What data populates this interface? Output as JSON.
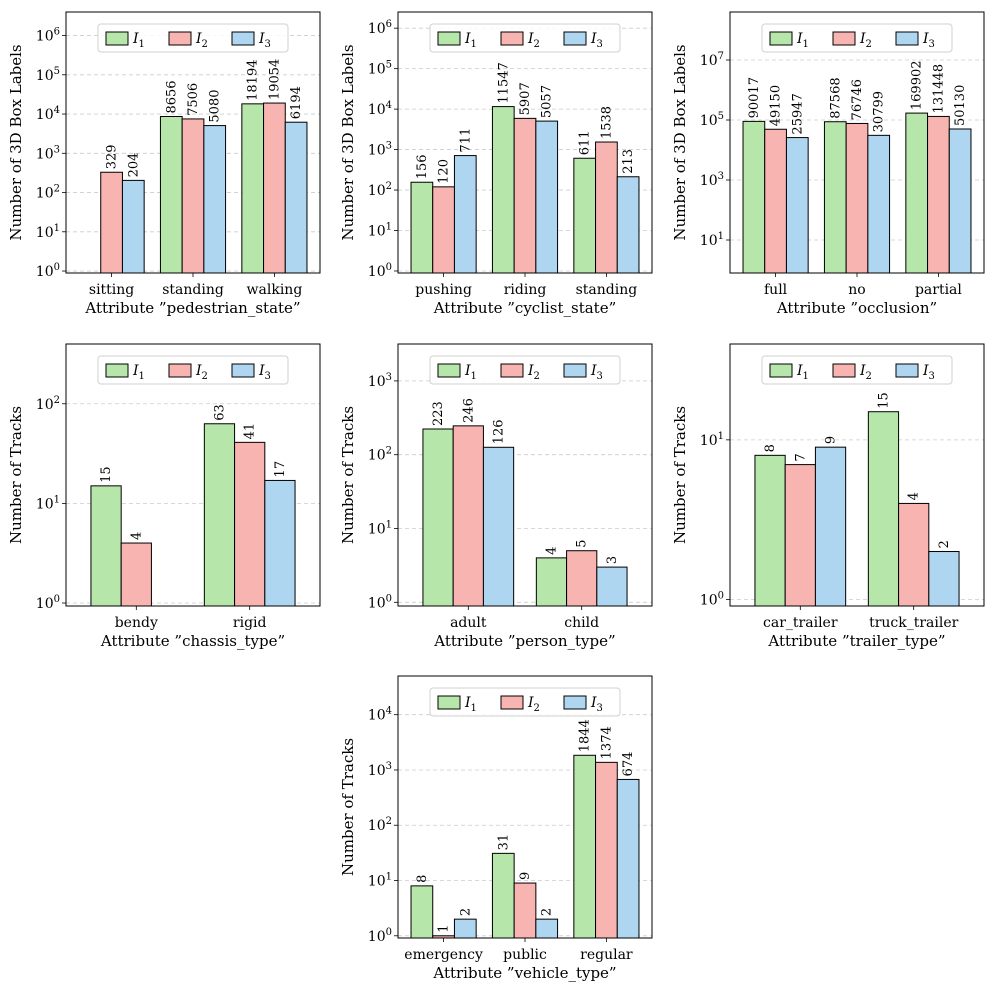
{
  "colors": {
    "s1": "#b6e6a9",
    "s2": "#f7b4b0",
    "s3": "#aed6f1",
    "edge": "#000000",
    "grid": "#cccccc"
  },
  "chart_data": [
    {
      "type": "bar",
      "title": "",
      "xlabel": "Attribute ”pedestrian_state”",
      "ylabel": "Number of 3D Box Labels",
      "categories": [
        "sitting",
        "standing",
        "walking"
      ],
      "series": [
        {
          "name": "I",
          "sub": "1",
          "values": [
            null,
            8656,
            18194
          ]
        },
        {
          "name": "I",
          "sub": "2",
          "values": [
            329,
            7506,
            19054
          ]
        },
        {
          "name": "I",
          "sub": "3",
          "values": [
            204,
            5080,
            6194
          ]
        }
      ],
      "ylim_exp": [
        -0.05,
        6.6
      ],
      "ticks": [
        0,
        1,
        2,
        3,
        4,
        5,
        6
      ],
      "grid": true,
      "legend": "top"
    },
    {
      "type": "bar",
      "title": "",
      "xlabel": "Attribute ”cyclist_state”",
      "ylabel": "Number of 3D Box Labels",
      "categories": [
        "pushing",
        "riding",
        "standing"
      ],
      "series": [
        {
          "name": "I",
          "sub": "1",
          "values": [
            156,
            11547,
            611
          ]
        },
        {
          "name": "I",
          "sub": "2",
          "values": [
            120,
            5907,
            1538
          ]
        },
        {
          "name": "I",
          "sub": "3",
          "values": [
            711,
            5057,
            213
          ]
        }
      ],
      "ylim_exp": [
        -0.05,
        6.4
      ],
      "ticks": [
        0,
        1,
        2,
        3,
        4,
        5,
        6
      ],
      "grid": true,
      "legend": "top"
    },
    {
      "type": "bar",
      "title": "",
      "xlabel": "Attribute ”occlusion”",
      "ylabel": "Number of 3D Box Labels",
      "categories": [
        "full",
        "no",
        "partial"
      ],
      "series": [
        {
          "name": "I",
          "sub": "1",
          "values": [
            90017,
            87568,
            169902
          ]
        },
        {
          "name": "I",
          "sub": "2",
          "values": [
            49150,
            76746,
            131448
          ]
        },
        {
          "name": "I",
          "sub": "3",
          "values": [
            25947,
            30799,
            50130
          ]
        }
      ],
      "ylim_exp": [
        -0.1,
        8.6
      ],
      "ticks": [
        1,
        3,
        5,
        7
      ],
      "grid": true,
      "legend": "top"
    },
    {
      "type": "bar",
      "title": "",
      "xlabel": "Attribute ”chassis_type”",
      "ylabel": "Number of Tracks",
      "categories": [
        "bendy",
        "rigid"
      ],
      "series": [
        {
          "name": "I",
          "sub": "1",
          "values": [
            15,
            63
          ]
        },
        {
          "name": "I",
          "sub": "2",
          "values": [
            4,
            41
          ]
        },
        {
          "name": "I",
          "sub": "3",
          "values": [
            null,
            17
          ]
        }
      ],
      "ylim_exp": [
        -0.03,
        2.6
      ],
      "ticks": [
        0,
        1,
        2
      ],
      "grid": true,
      "legend": "top"
    },
    {
      "type": "bar",
      "title": "",
      "xlabel": "Attribute ”person_type”",
      "ylabel": "Number of Tracks",
      "categories": [
        "adult",
        "child"
      ],
      "series": [
        {
          "name": "I",
          "sub": "1",
          "values": [
            223,
            4
          ]
        },
        {
          "name": "I",
          "sub": "2",
          "values": [
            246,
            5
          ]
        },
        {
          "name": "I",
          "sub": "3",
          "values": [
            126,
            3
          ]
        }
      ],
      "ylim_exp": [
        -0.05,
        3.5
      ],
      "ticks": [
        0,
        1,
        2,
        3
      ],
      "grid": true,
      "legend": "top"
    },
    {
      "type": "bar",
      "title": "",
      "xlabel": "Attribute ”trailer_type”",
      "ylabel": "Number of Tracks",
      "categories": [
        "car_trailer",
        "truck_trailer"
      ],
      "series": [
        {
          "name": "I",
          "sub": "1",
          "values": [
            8,
            15
          ]
        },
        {
          "name": "I",
          "sub": "2",
          "values": [
            7,
            4
          ]
        },
        {
          "name": "I",
          "sub": "3",
          "values": [
            9,
            2
          ]
        }
      ],
      "ylim_exp": [
        -0.04,
        1.6
      ],
      "ticks": [
        0,
        1
      ],
      "grid": true,
      "legend": "top"
    },
    {
      "type": "bar",
      "title": "",
      "xlabel": "Attribute ”vehicle_type”",
      "ylabel": "Number of Tracks",
      "categories": [
        "emergency",
        "public",
        "regular"
      ],
      "series": [
        {
          "name": "I",
          "sub": "1",
          "values": [
            8,
            31,
            1844
          ]
        },
        {
          "name": "I",
          "sub": "2",
          "values": [
            1,
            9,
            1374
          ]
        },
        {
          "name": "I",
          "sub": "3",
          "values": [
            2,
            2,
            674
          ]
        }
      ],
      "ylim_exp": [
        -0.04,
        4.7
      ],
      "ticks": [
        0,
        1,
        2,
        3,
        4
      ],
      "grid": true,
      "legend": "top"
    }
  ]
}
